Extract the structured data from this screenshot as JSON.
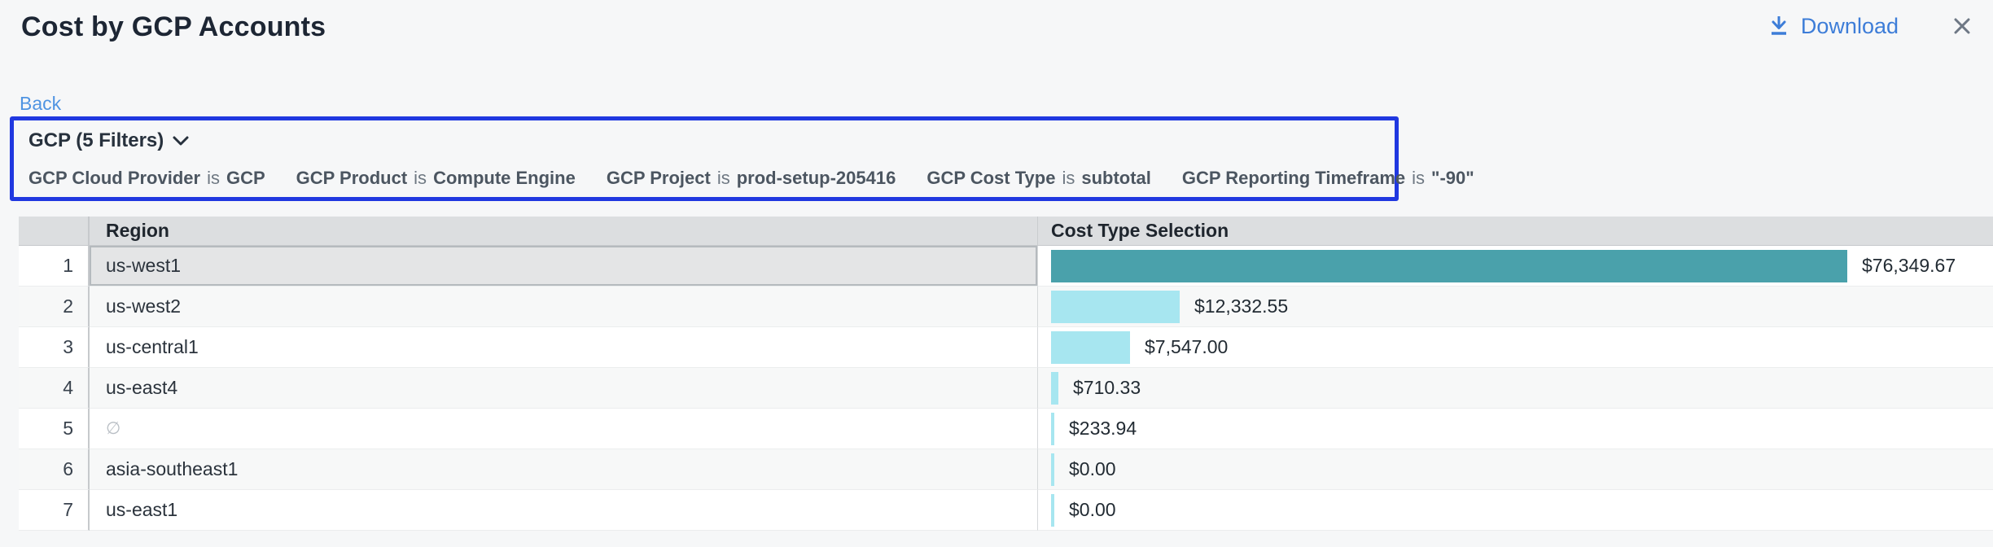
{
  "header": {
    "title": "Cost by GCP Accounts",
    "download_label": "Download",
    "accent_blue": "#3d7dd8"
  },
  "nav": {
    "back_label": "Back"
  },
  "filters": {
    "summary_label": "GCP (5 Filters)",
    "box_border_color": "#2038e0",
    "items": [
      {
        "name": "GCP Cloud Provider",
        "op": "is",
        "value": "GCP"
      },
      {
        "name": "GCP Product",
        "op": "is",
        "value": "Compute Engine"
      },
      {
        "name": "GCP Project",
        "op": "is",
        "value": "prod-setup-205416"
      },
      {
        "name": "GCP Cost Type",
        "op": "is",
        "value": "subtotal"
      },
      {
        "name": "GCP Reporting Timeframe",
        "op": "is",
        "value": "\"-90\""
      }
    ]
  },
  "table": {
    "columns": {
      "region": "Region",
      "cost": "Cost Type Selection"
    },
    "bar_colors": {
      "selected": "#4aa1ab",
      "normal": "#a7e6f0"
    },
    "rows": [
      {
        "index": "1",
        "region": "us-west1",
        "empty": false,
        "amount": 76349.67,
        "value_label": "$76,349.67",
        "selected": true
      },
      {
        "index": "2",
        "region": "us-west2",
        "empty": false,
        "amount": 12332.55,
        "value_label": "$12,332.55",
        "selected": false
      },
      {
        "index": "3",
        "region": "us-central1",
        "empty": false,
        "amount": 7547.0,
        "value_label": "$7,547.00",
        "selected": false
      },
      {
        "index": "4",
        "region": "us-east4",
        "empty": false,
        "amount": 710.33,
        "value_label": "$710.33",
        "selected": false
      },
      {
        "index": "5",
        "region": "∅",
        "empty": true,
        "amount": 233.94,
        "value_label": "$233.94",
        "selected": false
      },
      {
        "index": "6",
        "region": "asia-southeast1",
        "empty": false,
        "amount": 0.0,
        "value_label": "$0.00",
        "selected": false
      },
      {
        "index": "7",
        "region": "us-east1",
        "empty": false,
        "amount": 0.0,
        "value_label": "$0.00",
        "selected": false
      }
    ]
  }
}
